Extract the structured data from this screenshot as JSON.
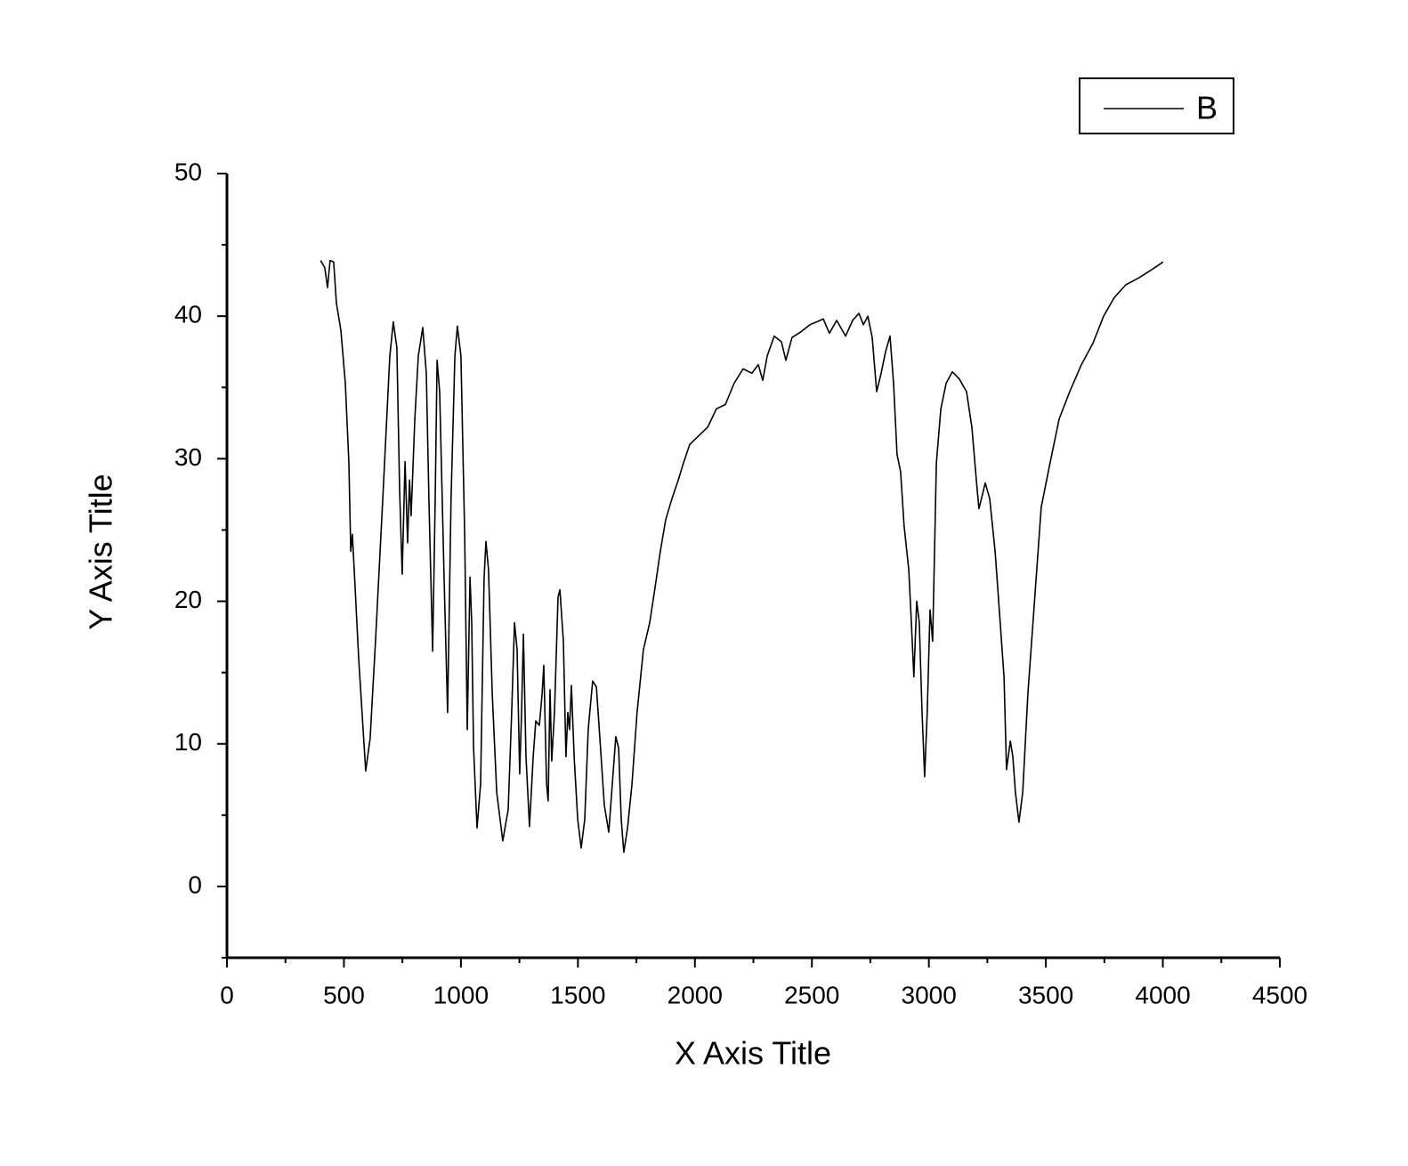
{
  "chart_data": {
    "type": "line",
    "xlabel": "X Axis Title",
    "ylabel": "Y Axis Title",
    "xlim": [
      0,
      4500
    ],
    "xticks": [
      0,
      500,
      1000,
      1500,
      2000,
      2500,
      3000,
      3500,
      4000,
      4500
    ],
    "xminorticks": [
      250,
      750,
      1250,
      1750,
      2250,
      2750,
      3250,
      3750,
      4250
    ],
    "ylim": [
      -5,
      50
    ],
    "yticks": [
      0,
      10,
      20,
      30,
      40,
      50
    ],
    "yminorticks": [
      -5,
      5,
      15,
      25,
      35,
      45
    ],
    "legend": "top-right",
    "x": [
      400,
      418,
      430,
      441,
      456,
      468,
      487,
      506,
      521,
      529,
      536,
      544,
      563,
      582,
      593,
      612,
      635,
      666,
      696,
      711,
      726,
      738,
      749,
      761,
      772,
      780,
      787,
      803,
      818,
      837,
      852,
      863,
      879,
      890,
      898,
      909,
      928,
      943,
      958,
      974,
      985,
      1000,
      1016,
      1027,
      1039,
      1046,
      1054,
      1069,
      1084,
      1099,
      1107,
      1118,
      1134,
      1153,
      1179,
      1202,
      1217,
      1229,
      1240,
      1251,
      1259,
      1267,
      1278,
      1293,
      1309,
      1320,
      1335,
      1347,
      1354,
      1366,
      1373,
      1381,
      1388,
      1400,
      1415,
      1423,
      1438,
      1449,
      1457,
      1464,
      1472,
      1484,
      1499,
      1514,
      1529,
      1544,
      1563,
      1579,
      1594,
      1613,
      1632,
      1647,
      1662,
      1674,
      1685,
      1696,
      1712,
      1731,
      1753,
      1780,
      1807,
      1830,
      1852,
      1875,
      1902,
      1929,
      1951,
      1978,
      2016,
      2054,
      2092,
      2130,
      2168,
      2206,
      2244,
      2271,
      2290,
      2309,
      2339,
      2370,
      2389,
      2415,
      2453,
      2492,
      2549,
      2575,
      2606,
      2644,
      2674,
      2701,
      2720,
      2739,
      2758,
      2777,
      2796,
      2815,
      2834,
      2849,
      2864,
      2879,
      2894,
      2914,
      2925,
      2936,
      2948,
      2959,
      2971,
      2982,
      2993,
      3005,
      3016,
      3032,
      3051,
      3074,
      3100,
      3130,
      3161,
      3184,
      3203,
      3214,
      3225,
      3241,
      3260,
      3283,
      3305,
      3321,
      3332,
      3348,
      3359,
      3370,
      3385,
      3401,
      3423,
      3450,
      3480,
      3518,
      3557,
      3602,
      3652,
      3701,
      3747,
      3792,
      3842,
      3899,
      3956,
      4001
    ],
    "series": [
      {
        "name": "B",
        "color": "#000000",
        "values": [
          43.9,
          43.4,
          42,
          43.9,
          43.8,
          40.9,
          39,
          35.3,
          29.7,
          23.5,
          24.7,
          22.2,
          16,
          11,
          8.1,
          10.4,
          17.2,
          27.2,
          37.2,
          39.6,
          37.8,
          27.8,
          21.9,
          29.8,
          24.1,
          28.5,
          26,
          32.8,
          37.2,
          39.2,
          36,
          27.2,
          16.5,
          27.2,
          36.9,
          34.7,
          21.6,
          12.2,
          27.2,
          37.2,
          39.3,
          37.2,
          24.7,
          11,
          21.7,
          18.5,
          9.7,
          4.1,
          7.2,
          21.6,
          24.2,
          22.2,
          13.5,
          6.6,
          3.2,
          5.4,
          12.2,
          18.5,
          16.6,
          7.9,
          12.2,
          17.7,
          9.1,
          4.2,
          9.1,
          11.6,
          11.3,
          13.5,
          15.5,
          7.2,
          6,
          13.8,
          8.8,
          12.2,
          20.3,
          20.8,
          17.2,
          9.1,
          12.2,
          11,
          14.1,
          9.1,
          4.7,
          2.7,
          4.7,
          11,
          14.4,
          14,
          10.4,
          5.7,
          3.8,
          7.2,
          10.5,
          9.7,
          4.7,
          2.4,
          4.1,
          7.2,
          12.2,
          16.6,
          18.5,
          21,
          23.5,
          25.7,
          27.2,
          28.5,
          29.7,
          31,
          31.6,
          32.2,
          33.5,
          33.8,
          35.3,
          36.3,
          36,
          36.6,
          35.5,
          37.2,
          38.6,
          38.2,
          36.9,
          38.5,
          38.9,
          39.4,
          39.8,
          38.8,
          39.7,
          38.6,
          39.7,
          40.2,
          39.4,
          40,
          38.5,
          34.7,
          36,
          37.5,
          38.6,
          35.3,
          30.3,
          29.1,
          25.3,
          22.2,
          18.5,
          14.7,
          20,
          18.5,
          12.2,
          7.7,
          12.2,
          19.4,
          17.2,
          29.7,
          33.5,
          35.3,
          36.1,
          35.6,
          34.7,
          32.2,
          28.5,
          26.5,
          27.2,
          28.3,
          27.2,
          23.5,
          18.5,
          14.7,
          8.2,
          10.2,
          9.1,
          6.6,
          4.5,
          6.6,
          13.5,
          19.7,
          26.6,
          29.7,
          32.8,
          34.7,
          36.6,
          38.1,
          40,
          41.3,
          42.2,
          42.7,
          43.3,
          43.8
        ]
      }
    ]
  }
}
